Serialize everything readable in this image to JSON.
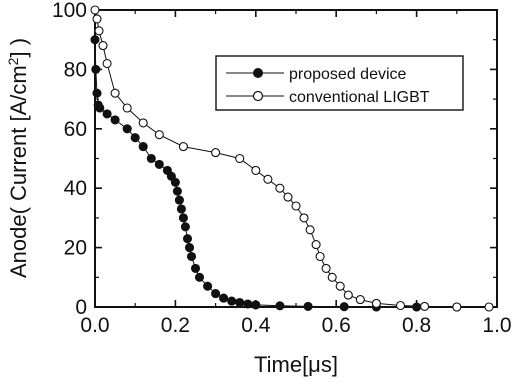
{
  "chart_data": {
    "type": "line",
    "title": "",
    "xlabel": "Time[μs]",
    "ylabel": {
      "before_unit": "Anode( Current [A/cm",
      "superscript": "2",
      "after_unit": "] )"
    },
    "xlim": [
      0.0,
      1.0
    ],
    "ylim": [
      0,
      100
    ],
    "x_ticks": [
      "0.0",
      "0.2",
      "0.4",
      "0.6",
      "0.8",
      "1.0"
    ],
    "y_ticks": [
      "0",
      "20",
      "40",
      "60",
      "80",
      "100"
    ],
    "legend_position": "top-right",
    "grid": false,
    "series": [
      {
        "name": "proposed device",
        "marker": "filled-circle",
        "color": "#111111",
        "points": [
          [
            0.0,
            90
          ],
          [
            0.002,
            80
          ],
          [
            0.005,
            72
          ],
          [
            0.008,
            68
          ],
          [
            0.012,
            67
          ],
          [
            0.03,
            65
          ],
          [
            0.05,
            63
          ],
          [
            0.08,
            60
          ],
          [
            0.1,
            57
          ],
          [
            0.12,
            54
          ],
          [
            0.14,
            50
          ],
          [
            0.16,
            48
          ],
          [
            0.18,
            46
          ],
          [
            0.19,
            44
          ],
          [
            0.2,
            42
          ],
          [
            0.205,
            39
          ],
          [
            0.21,
            36
          ],
          [
            0.215,
            33
          ],
          [
            0.22,
            30
          ],
          [
            0.225,
            27
          ],
          [
            0.23,
            23
          ],
          [
            0.235,
            20
          ],
          [
            0.24,
            17
          ],
          [
            0.25,
            13
          ],
          [
            0.26,
            10
          ],
          [
            0.28,
            7
          ],
          [
            0.3,
            4.5
          ],
          [
            0.32,
            3
          ],
          [
            0.34,
            2
          ],
          [
            0.36,
            1.5
          ],
          [
            0.38,
            1
          ],
          [
            0.4,
            0.7
          ],
          [
            0.46,
            0.4
          ],
          [
            0.53,
            0.2
          ],
          [
            0.62,
            0.1
          ],
          [
            0.7,
            0
          ],
          [
            0.8,
            0
          ],
          [
            0.9,
            0
          ]
        ]
      },
      {
        "name": "conventional LIGBT",
        "marker": "open-circle",
        "color": "#111111",
        "points": [
          [
            0.0,
            100
          ],
          [
            0.005,
            97
          ],
          [
            0.01,
            93
          ],
          [
            0.02,
            88
          ],
          [
            0.03,
            82
          ],
          [
            0.05,
            72
          ],
          [
            0.08,
            67
          ],
          [
            0.12,
            62
          ],
          [
            0.16,
            58
          ],
          [
            0.22,
            54
          ],
          [
            0.3,
            52
          ],
          [
            0.36,
            50
          ],
          [
            0.4,
            46
          ],
          [
            0.43,
            43
          ],
          [
            0.46,
            40
          ],
          [
            0.48,
            37
          ],
          [
            0.5,
            34
          ],
          [
            0.52,
            30
          ],
          [
            0.535,
            26
          ],
          [
            0.55,
            21
          ],
          [
            0.56,
            17
          ],
          [
            0.575,
            13
          ],
          [
            0.59,
            10
          ],
          [
            0.61,
            7
          ],
          [
            0.63,
            4
          ],
          [
            0.66,
            2.5
          ],
          [
            0.7,
            1.2
          ],
          [
            0.76,
            0.5
          ],
          [
            0.82,
            0.2
          ],
          [
            0.9,
            0
          ],
          [
            0.98,
            0
          ]
        ]
      }
    ]
  }
}
